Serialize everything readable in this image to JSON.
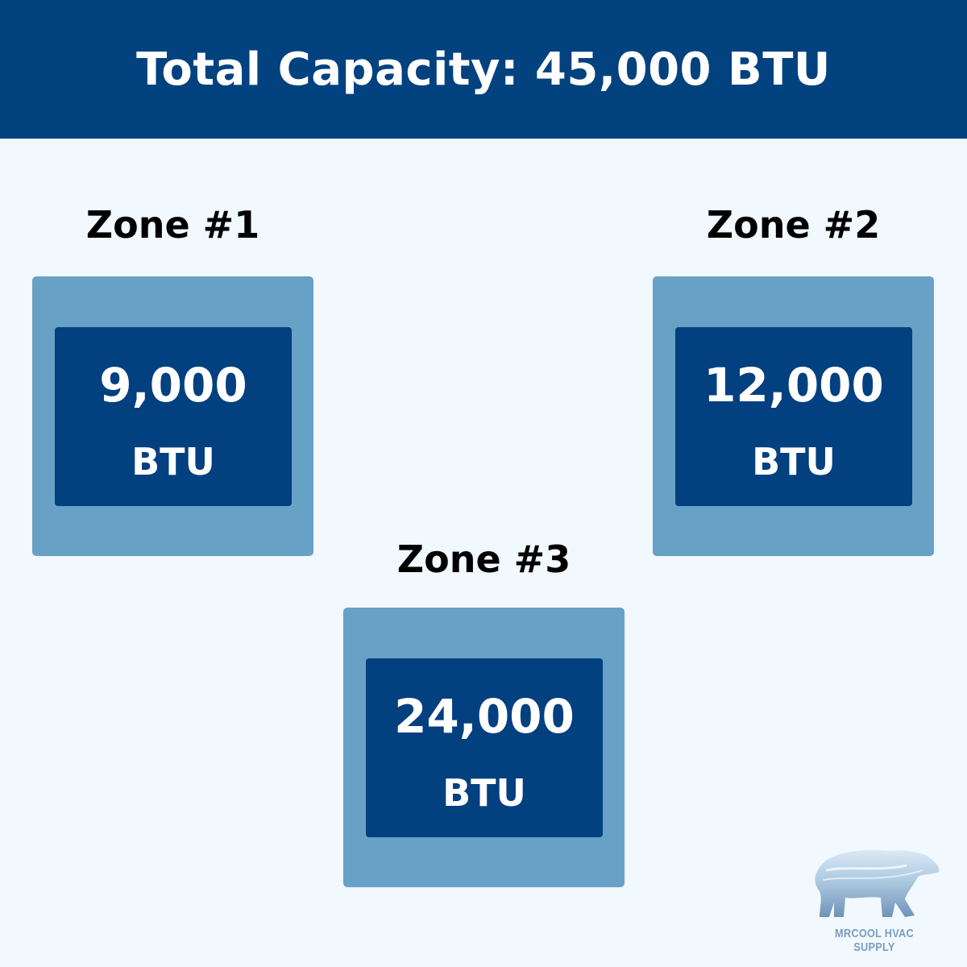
{
  "header": {
    "title": "Total Capacity: 45,000 BTU"
  },
  "zones": [
    {
      "label": "Zone #1",
      "value": "9,000",
      "unit": "BTU"
    },
    {
      "label": "Zone #2",
      "value": "12,000",
      "unit": "BTU"
    },
    {
      "label": "Zone #3",
      "value": "24,000",
      "unit": "BTU"
    }
  ],
  "logo": {
    "text": "MRCOOL HVAC SUPPLY"
  },
  "colors": {
    "header": "#02427f",
    "background": "#f1f8fe",
    "outer_box": "#68a1c6",
    "inner_box": "#024080"
  }
}
